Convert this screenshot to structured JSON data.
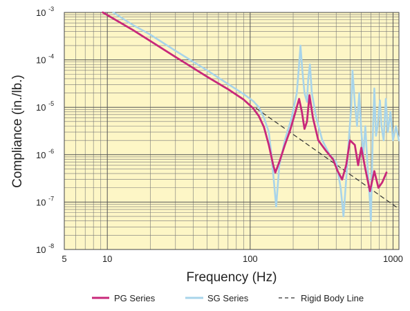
{
  "chart_data": {
    "type": "line",
    "title": "",
    "xlabel": "Frequency (Hz)",
    "ylabel": "Compliance (in./lb.)",
    "x_scale": "log",
    "y_scale": "log",
    "xlim": [
      5,
      1100
    ],
    "ylim": [
      1e-08,
      0.001
    ],
    "grid": true,
    "x_ticks": [
      {
        "value": 5,
        "label": "5"
      },
      {
        "value": 10,
        "label": "10"
      },
      {
        "value": 100,
        "label": "100"
      },
      {
        "value": 1000,
        "label": "1000"
      }
    ],
    "y_ticks": [
      {
        "value": 0.001,
        "base": "10",
        "exp": "-3"
      },
      {
        "value": 0.0001,
        "base": "10",
        "exp": "-4"
      },
      {
        "value": 1e-05,
        "base": "10",
        "exp": "-5"
      },
      {
        "value": 1e-06,
        "base": "10",
        "exp": "-6"
      },
      {
        "value": 1e-07,
        "base": "10",
        "exp": "-7"
      },
      {
        "value": 1e-08,
        "base": "10",
        "exp": "-8"
      }
    ],
    "legend_position": "bottom",
    "series": [
      {
        "name": "PG Series",
        "color": "#c8287a",
        "style": "solid",
        "points": [
          [
            9.3,
            0.001
          ],
          [
            15,
            0.00043
          ],
          [
            20,
            0.00025
          ],
          [
            30,
            0.000115
          ],
          [
            50,
            4.4e-05
          ],
          [
            70,
            2.4e-05
          ],
          [
            90,
            1.45e-05
          ],
          [
            105,
            9.5e-06
          ],
          [
            115,
            6.5e-06
          ],
          [
            125,
            3.8e-06
          ],
          [
            135,
            1.6e-06
          ],
          [
            145,
            6e-07
          ],
          [
            150,
            4.2e-07
          ],
          [
            160,
            7e-07
          ],
          [
            175,
            1.6e-06
          ],
          [
            190,
            3.2e-06
          ],
          [
            205,
            7e-06
          ],
          [
            220,
            1.5e-05
          ],
          [
            230,
            8e-06
          ],
          [
            240,
            3.5e-06
          ],
          [
            250,
            5e-06
          ],
          [
            260,
            1.8e-05
          ],
          [
            275,
            6e-06
          ],
          [
            300,
            2e-06
          ],
          [
            340,
            1.2e-06
          ],
          [
            380,
            8e-07
          ],
          [
            410,
            4.5e-07
          ],
          [
            440,
            3e-07
          ],
          [
            470,
            6e-07
          ],
          [
            500,
            2e-06
          ],
          [
            540,
            1.6e-06
          ],
          [
            570,
            6e-07
          ],
          [
            600,
            1.4e-06
          ],
          [
            640,
            5e-07
          ],
          [
            690,
            1.7e-07
          ],
          [
            740,
            4.5e-07
          ],
          [
            790,
            2e-07
          ],
          [
            840,
            2.6e-07
          ],
          [
            900,
            4.2e-07
          ]
        ]
      },
      {
        "name": "SG Series",
        "color": "#a8d4ea",
        "style": "solid",
        "points": [
          [
            11,
            0.001
          ],
          [
            15,
            0.00055
          ],
          [
            20,
            0.00034
          ],
          [
            30,
            0.000155
          ],
          [
            50,
            6e-05
          ],
          [
            70,
            3.1e-05
          ],
          [
            90,
            1.9e-05
          ],
          [
            105,
            1.35e-05
          ],
          [
            115,
            1e-05
          ],
          [
            125,
            6e-06
          ],
          [
            135,
            3e-06
          ],
          [
            140,
            1.2e-06
          ],
          [
            147,
            2.5e-07
          ],
          [
            152,
            8e-08
          ],
          [
            160,
            6e-07
          ],
          [
            175,
            2e-06
          ],
          [
            195,
            6e-06
          ],
          [
            212,
            2e-05
          ],
          [
            220,
            8e-05
          ],
          [
            225,
            0.0002
          ],
          [
            232,
            6e-05
          ],
          [
            240,
            2e-05
          ],
          [
            250,
            1.3e-05
          ],
          [
            255,
            4e-05
          ],
          [
            262,
            8e-05
          ],
          [
            270,
            2e-05
          ],
          [
            290,
            6e-06
          ],
          [
            320,
            2e-06
          ],
          [
            360,
            1e-06
          ],
          [
            400,
            7e-07
          ],
          [
            430,
            2e-07
          ],
          [
            450,
            5e-08
          ],
          [
            470,
            3e-07
          ],
          [
            490,
            2e-06
          ],
          [
            510,
            1e-05
          ],
          [
            520,
            6e-05
          ],
          [
            540,
            1.2e-05
          ],
          [
            560,
            4e-06
          ],
          [
            580,
            2e-05
          ],
          [
            600,
            3e-06
          ],
          [
            620,
            1e-06
          ],
          [
            640,
            4e-06
          ],
          [
            660,
            7e-07
          ],
          [
            690,
            1e-07
          ],
          [
            700,
            4e-08
          ],
          [
            720,
            2e-06
          ],
          [
            740,
            2.5e-05
          ],
          [
            760,
            2.5e-06
          ],
          [
            780,
            4e-06
          ],
          [
            810,
            1.4e-05
          ],
          [
            830,
            4e-06
          ],
          [
            860,
            2e-06
          ],
          [
            890,
            1.5e-05
          ],
          [
            920,
            3e-06
          ],
          [
            960,
            8e-06
          ],
          [
            1000,
            2e-06
          ],
          [
            1050,
            4e-06
          ],
          [
            1100,
            2e-06
          ]
        ]
      },
      {
        "name": "Rigid Body Line",
        "color": "#333333",
        "style": "dashed",
        "points": [
          [
            110,
            9.5e-06
          ],
          [
            1100,
            7.2e-08
          ]
        ]
      }
    ]
  }
}
